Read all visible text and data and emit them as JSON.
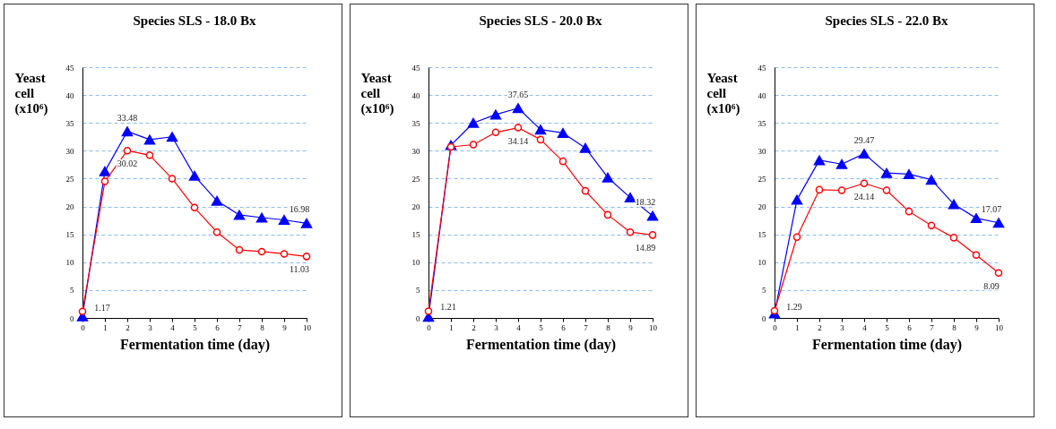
{
  "chart_data": [
    {
      "type": "line",
      "title": "Species SLS - 18.0 Bx",
      "xlabel": "Fermentation time (day)",
      "ylabel": "Yeast cell (x10⁶)",
      "x": [
        0,
        1,
        2,
        3,
        4,
        5,
        6,
        7,
        8,
        9,
        10
      ],
      "xlim": [
        0,
        10
      ],
      "xticks": [
        0,
        1,
        2,
        3,
        4,
        5,
        6,
        7,
        8,
        9,
        10
      ],
      "ylim": [
        0,
        45
      ],
      "yticks": [
        0,
        5,
        10,
        15,
        20,
        25,
        30,
        35,
        40,
        45
      ],
      "grid": "y",
      "series": [
        {
          "color": "#0000ff",
          "marker": "triangle",
          "values": [
            0.3,
            26.3,
            33.48,
            32,
            32.5,
            25.5,
            21,
            18.5,
            18,
            17.6,
            16.98
          ],
          "value_labels": [
            null,
            null,
            "33.48",
            null,
            null,
            null,
            null,
            null,
            null,
            null,
            "16.98"
          ]
        },
        {
          "color": "#ff0000",
          "marker": "circle",
          "values": [
            1.17,
            24.5,
            30.02,
            29.2,
            25,
            19.8,
            15.4,
            12.2,
            11.9,
            11.5,
            11.03
          ],
          "value_labels": [
            "1.17",
            null,
            "30.02",
            null,
            null,
            null,
            null,
            null,
            null,
            null,
            "11.03"
          ]
        }
      ]
    },
    {
      "type": "line",
      "title": "Species SLS - 20.0 Bx",
      "xlabel": "Fermentation time (day)",
      "ylabel": "Yeast cell (x10⁶)",
      "x": [
        0,
        1,
        2,
        3,
        4,
        5,
        6,
        7,
        8,
        9,
        10
      ],
      "xlim": [
        0,
        10
      ],
      "xticks": [
        0,
        1,
        2,
        3,
        4,
        5,
        6,
        7,
        8,
        9,
        10
      ],
      "ylim": [
        0,
        45
      ],
      "yticks": [
        0,
        5,
        10,
        15,
        20,
        25,
        30,
        35,
        40,
        45
      ],
      "grid": "y",
      "series": [
        {
          "color": "#0000ff",
          "marker": "triangle",
          "values": [
            0.2,
            31,
            35,
            36.5,
            37.65,
            33.8,
            33.2,
            30.5,
            25.2,
            21.6,
            18.32
          ],
          "value_labels": [
            null,
            null,
            null,
            null,
            "37.65",
            null,
            null,
            null,
            null,
            null,
            "18.32"
          ]
        },
        {
          "color": "#ff0000",
          "marker": "circle",
          "values": [
            1.21,
            30.7,
            31.1,
            33.3,
            34.14,
            32,
            28.1,
            22.8,
            18.5,
            15.4,
            14.89
          ],
          "value_labels": [
            "1.21",
            null,
            null,
            null,
            "34.14",
            null,
            null,
            null,
            null,
            null,
            "14.89"
          ]
        }
      ]
    },
    {
      "type": "line",
      "title": "Species SLS - 22.0 Bx",
      "xlabel": "Fermentation time (day)",
      "ylabel": "Yeast cell (x10⁶)",
      "x": [
        0,
        1,
        2,
        3,
        4,
        5,
        6,
        7,
        8,
        9,
        10
      ],
      "xlim": [
        0,
        10
      ],
      "xticks": [
        0,
        1,
        2,
        3,
        4,
        5,
        6,
        7,
        8,
        9,
        10
      ],
      "ylim": [
        0,
        45
      ],
      "yticks": [
        0,
        5,
        10,
        15,
        20,
        25,
        30,
        35,
        40,
        45
      ],
      "grid": "y",
      "series": [
        {
          "color": "#0000ff",
          "marker": "triangle",
          "values": [
            0.8,
            21.2,
            28.3,
            27.6,
            29.47,
            26,
            25.8,
            24.8,
            20.4,
            17.9,
            17.07
          ],
          "value_labels": [
            null,
            null,
            null,
            null,
            "29.47",
            null,
            null,
            null,
            null,
            null,
            "17.07"
          ]
        },
        {
          "color": "#ff0000",
          "marker": "circle",
          "values": [
            1.29,
            14.5,
            23,
            22.9,
            24.14,
            22.9,
            19.1,
            16.6,
            14.4,
            11.3,
            8.09
          ],
          "value_labels": [
            "1.29",
            null,
            null,
            null,
            "24.14",
            null,
            null,
            null,
            null,
            null,
            "8.09"
          ]
        }
      ]
    }
  ]
}
